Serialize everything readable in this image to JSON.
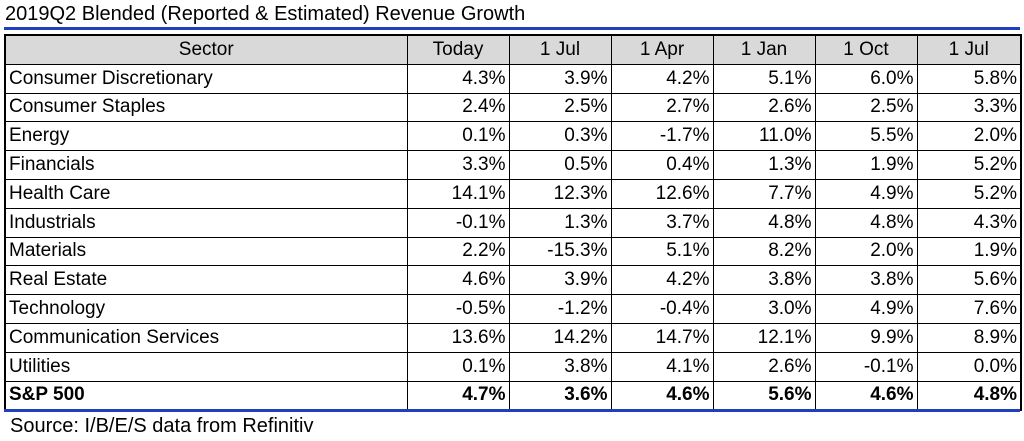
{
  "title": "2019Q2 Blended (Reported & Estimated) Revenue Growth",
  "source": "Source: I/B/E/S data from Refinitiv",
  "colors": {
    "rule": "#1f3fbf",
    "header_bg": "#d9d9d9"
  },
  "chart_data": {
    "type": "table",
    "title": "2019Q2 Blended (Reported & Estimated) Revenue Growth",
    "columns": [
      "Sector",
      "Today",
      "1 Jul",
      "1 Apr",
      "1 Jan",
      "1 Oct",
      "1 Jul"
    ],
    "rows": [
      {
        "sector": "Consumer Discretionary",
        "values": [
          "4.3%",
          "3.9%",
          "4.2%",
          "5.1%",
          "6.0%",
          "5.8%"
        ]
      },
      {
        "sector": "Consumer Staples",
        "values": [
          "2.4%",
          "2.5%",
          "2.7%",
          "2.6%",
          "2.5%",
          "3.3%"
        ]
      },
      {
        "sector": "Energy",
        "values": [
          "0.1%",
          "0.3%",
          "-1.7%",
          "11.0%",
          "5.5%",
          "2.0%"
        ]
      },
      {
        "sector": "Financials",
        "values": [
          "3.3%",
          "0.5%",
          "0.4%",
          "1.3%",
          "1.9%",
          "5.2%"
        ]
      },
      {
        "sector": "Health Care",
        "values": [
          "14.1%",
          "12.3%",
          "12.6%",
          "7.7%",
          "4.9%",
          "5.2%"
        ]
      },
      {
        "sector": "Industrials",
        "values": [
          "-0.1%",
          "1.3%",
          "3.7%",
          "4.8%",
          "4.8%",
          "4.3%"
        ]
      },
      {
        "sector": "Materials",
        "values": [
          "2.2%",
          "-15.3%",
          "5.1%",
          "8.2%",
          "2.0%",
          "1.9%"
        ]
      },
      {
        "sector": "Real Estate",
        "values": [
          "4.6%",
          "3.9%",
          "4.2%",
          "3.8%",
          "3.8%",
          "5.6%"
        ]
      },
      {
        "sector": "Technology",
        "values": [
          "-0.5%",
          "-1.2%",
          "-0.4%",
          "3.0%",
          "4.9%",
          "7.6%"
        ]
      },
      {
        "sector": "Communication Services",
        "values": [
          "13.6%",
          "14.2%",
          "14.7%",
          "12.1%",
          "9.9%",
          "8.9%"
        ]
      },
      {
        "sector": "Utilities",
        "values": [
          "0.1%",
          "3.8%",
          "4.1%",
          "2.6%",
          "-0.1%",
          "0.0%"
        ]
      },
      {
        "sector": "S&P 500",
        "values": [
          "4.7%",
          "3.6%",
          "4.6%",
          "5.6%",
          "4.6%",
          "4.8%"
        ],
        "bold": true
      }
    ]
  }
}
